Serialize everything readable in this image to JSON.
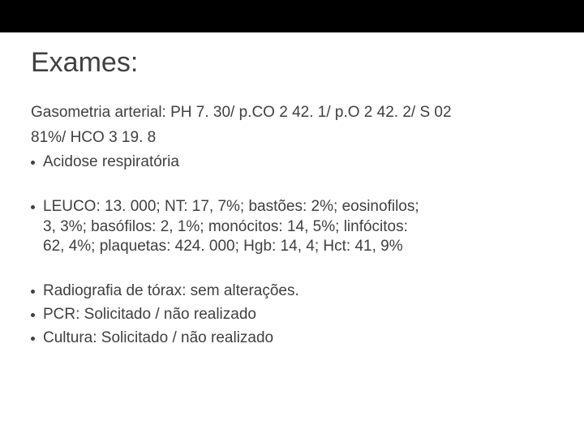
{
  "slide": {
    "title": "Exames:",
    "line1": "Gasometria arterial: PH 7. 30/ p.CO 2 42. 1/ p.O 2 42. 2/ S 02",
    "line2": "81%/ HCO 3 19. 8",
    "bullet1": "Acidose respiratória",
    "bullet2_l1": " LEUCO: 13. 000; NT: 17, 7%; bastões: 2%; eosinofilos;",
    "bullet2_l2": "3, 3%; basófilos: 2, 1%; monócitos: 14, 5%; linfócitos:",
    "bullet2_l3": "62, 4%; plaquetas: 424. 000; Hgb: 14, 4; Hct: 41, 9%",
    "bullet3": "Radiografia de tórax: sem alterações.",
    "bullet4": "PCR: Solicitado / não realizado",
    "bullet5": "Cultura: Solicitado / não realizado",
    "colors": {
      "topbar": "#000000",
      "background": "#ffffff",
      "text": "#404040"
    },
    "fonts": {
      "title_size": 34,
      "body_size": 19,
      "family": "Arial"
    }
  }
}
